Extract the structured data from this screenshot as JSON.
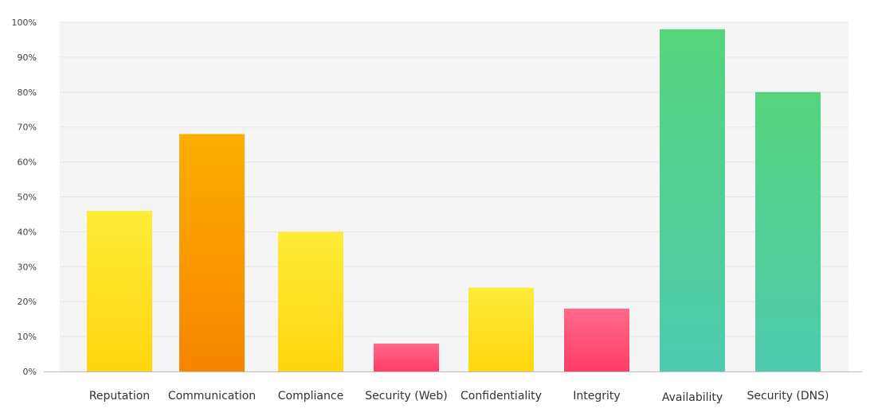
{
  "chart_data": {
    "type": "bar",
    "title": "",
    "xlabel": "",
    "ylabel": "",
    "ylim": [
      0,
      100
    ],
    "y_ticks": [
      "0%",
      "10%",
      "20%",
      "30%",
      "40%",
      "50%",
      "60%",
      "70%",
      "80%",
      "90%",
      "100%"
    ],
    "categories": [
      "Reputation",
      "Communication",
      "Compliance",
      "Security (Web)",
      "Confidentiality",
      "Integrity",
      "Availability",
      "Security (DNS)"
    ],
    "values": [
      46,
      68,
      40,
      8,
      24,
      18,
      98,
      80
    ],
    "bar_colors": [
      [
        "#FFEC3A",
        "#FFD60D"
      ],
      [
        "#FBAE00",
        "#F88500"
      ],
      [
        "#FFEC3A",
        "#FFD60D"
      ],
      [
        "#FF6A8A",
        "#FF3C66"
      ],
      [
        "#FFEC3A",
        "#FFD60D"
      ],
      [
        "#FF6A8A",
        "#FF3C66"
      ],
      [
        "#56D47D",
        "#4FCAAF"
      ],
      [
        "#56D47D",
        "#4FCAAF"
      ]
    ],
    "grid": true,
    "plot_background": "#F5F5F5",
    "gridline_color": "#E6E6E6",
    "axis_color": "#BDBDBD"
  }
}
